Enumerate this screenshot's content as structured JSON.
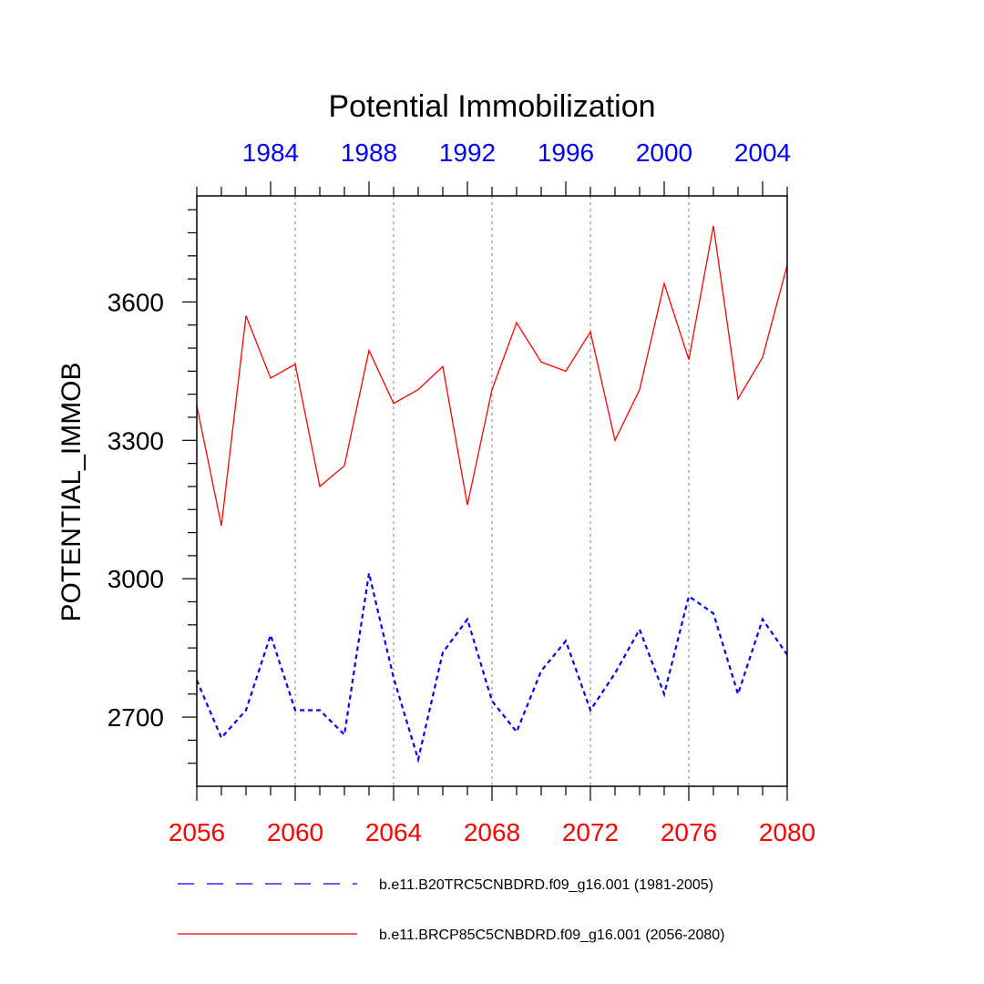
{
  "chart_data": {
    "type": "line",
    "title": "Potential Immobilization",
    "ylabel": "POTENTIAL_IMMOB",
    "xlabel": "",
    "ylim": [
      2550,
      3830
    ],
    "yticks": [
      2700,
      3000,
      3300,
      3600
    ],
    "bottom_axis": {
      "range": [
        2056,
        2080
      ],
      "ticks": [
        2056,
        2060,
        2064,
        2068,
        2072,
        2076,
        2080
      ],
      "tick_labels": [
        "2056",
        "2060",
        "2064",
        "2068",
        "2072",
        "2076",
        "2080"
      ],
      "color": "#ff0000"
    },
    "top_axis": {
      "range": [
        1981,
        2005
      ],
      "ticks": [
        1984,
        1988,
        1992,
        1996,
        2000,
        2004
      ],
      "tick_labels": [
        "1984",
        "1988",
        "1992",
        "1996",
        "2000",
        "2004"
      ],
      "color": "#0000ff"
    },
    "ytick_labels": [
      "2700",
      "3000",
      "3300",
      "3600"
    ],
    "vertical_gridlines_at": [
      2060,
      2064,
      2068,
      2072,
      2076
    ],
    "series": [
      {
        "name": "b.e11.B20TRC5CNBDRD.f09_g16.001 (1981-2005)",
        "color": "#0000ff",
        "style": "dashed",
        "x": [
          1981,
          1982,
          1983,
          1984,
          1985,
          1986,
          1987,
          1988,
          1989,
          1990,
          1991,
          1992,
          1993,
          1994,
          1995,
          1996,
          1997,
          1998,
          1999,
          2000,
          2001,
          2002,
          2003,
          2004,
          2005
        ],
        "values": [
          2780,
          2655,
          2715,
          2878,
          2715,
          2715,
          2662,
          3012,
          2785,
          2608,
          2840,
          2912,
          2735,
          2668,
          2800,
          2865,
          2715,
          2795,
          2890,
          2750,
          2962,
          2925,
          2750,
          2912,
          2835
        ]
      },
      {
        "name": "b.e11.BRCP85C5CNBDRD.f09_g16.001 (2056-2080)",
        "color": "#ff0000",
        "style": "solid",
        "x": [
          2056,
          2057,
          2058,
          2059,
          2060,
          2061,
          2062,
          2063,
          2064,
          2065,
          2066,
          2067,
          2068,
          2069,
          2070,
          2071,
          2072,
          2073,
          2074,
          2075,
          2076,
          2077,
          2078,
          2079,
          2080
        ],
        "values": [
          3375,
          3115,
          3570,
          3435,
          3465,
          3200,
          3245,
          3495,
          3380,
          3410,
          3460,
          3160,
          3410,
          3555,
          3470,
          3450,
          3535,
          3300,
          3410,
          3640,
          3475,
          3765,
          3390,
          3480,
          3680
        ]
      }
    ],
    "legend_position": "bottom"
  }
}
